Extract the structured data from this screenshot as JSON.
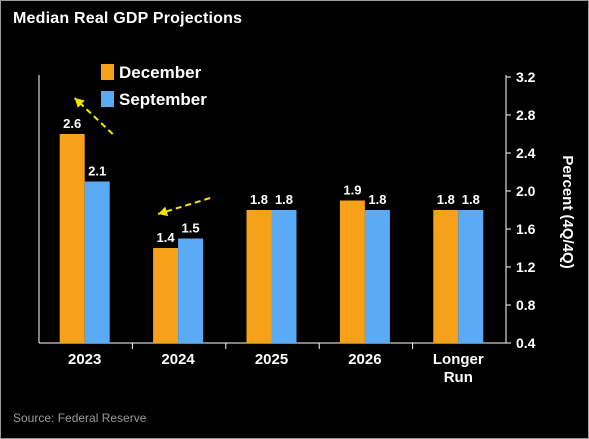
{
  "source": "Source: Federal Reserve",
  "colors": {
    "december": "#f7a01a",
    "september": "#5aabf5",
    "arrow": "#f2e400",
    "background": "#000000",
    "text": "#ffffff"
  },
  "chart_data": {
    "type": "bar",
    "title": "Median Real GDP Projections",
    "categories": [
      "2023",
      "2024",
      "2025",
      "2026",
      "Longer Run"
    ],
    "series": [
      {
        "name": "December",
        "values": [
          2.6,
          1.4,
          1.8,
          1.9,
          1.8
        ]
      },
      {
        "name": "September",
        "values": [
          2.1,
          1.5,
          1.8,
          1.8,
          1.8
        ]
      }
    ],
    "data_labels": [
      [
        "2.6",
        "1.4",
        "1.8",
        "1.9",
        "1.8"
      ],
      [
        "2.1",
        "1.5",
        "1.8",
        "1.8",
        "1.8"
      ]
    ],
    "ylabel": "Percent (4Q/4Q)",
    "ylim": [
      0.4,
      3.2
    ],
    "yticks": [
      "0.4",
      "0.8",
      "1.2",
      "1.6",
      "2.0",
      "2.4",
      "2.8",
      "3.2"
    ],
    "y_axis_side": "right",
    "legend_position": "top-left",
    "grid": false,
    "annotations": [
      {
        "type": "dashed-arrow",
        "category": "2023",
        "direction": "up-left"
      },
      {
        "type": "dashed-arrow",
        "category": "2024",
        "direction": "down-left"
      }
    ]
  }
}
